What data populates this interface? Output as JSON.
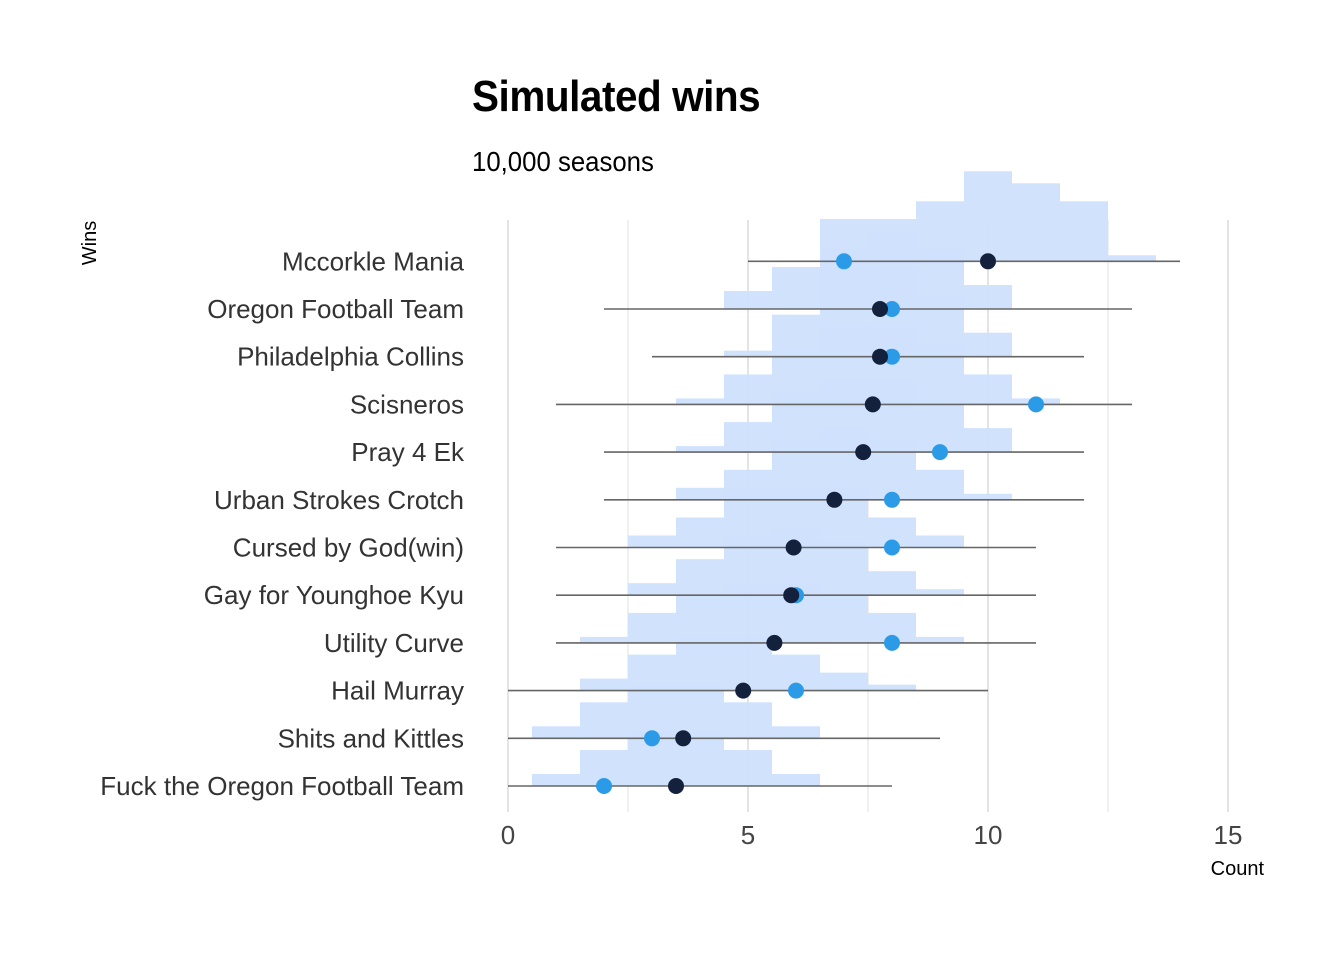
{
  "chart_data": {
    "type": "dotplot-with-histograms",
    "title": "Simulated wins",
    "subtitle": "10,000 seasons",
    "xlabel": "Count",
    "ylabel": "Wins",
    "xlim": [
      0,
      15
    ],
    "xticks": [
      0,
      5,
      10,
      15
    ],
    "colors": {
      "simulated": "#14213d",
      "actual": "#2b9be8",
      "histogram": "#cfe0fd",
      "range": "#666666",
      "grid": "#d9d9d9"
    },
    "teams": [
      {
        "name": "Fuck the Oregon Football Team",
        "mean": 3.5,
        "actual": 2,
        "min": 0,
        "max": 8,
        "hist": [
          [
            0.5,
            1.5,
            0.06
          ],
          [
            1.5,
            2.5,
            0.18
          ],
          [
            2.5,
            4.5,
            0.27
          ],
          [
            4.5,
            5.5,
            0.18
          ],
          [
            5.5,
            6.5,
            0.06
          ]
        ]
      },
      {
        "name": "Shits and Kittles",
        "mean": 3.65,
        "actual": 3,
        "min": 0,
        "max": 9,
        "hist": [
          [
            0.5,
            1.5,
            0.06
          ],
          [
            1.5,
            2.5,
            0.18
          ],
          [
            2.5,
            4.5,
            0.27
          ],
          [
            4.5,
            5.5,
            0.18
          ],
          [
            5.5,
            6.5,
            0.06
          ]
        ]
      },
      {
        "name": "Hail Murray",
        "mean": 4.9,
        "actual": 6,
        "min": 0,
        "max": 10,
        "hist": [
          [
            1.5,
            2.5,
            0.06
          ],
          [
            2.5,
            3.5,
            0.18
          ],
          [
            3.5,
            5.5,
            0.27
          ],
          [
            5.5,
            6.5,
            0.18
          ],
          [
            6.5,
            7.5,
            0.09
          ],
          [
            7.5,
            8.5,
            0.03
          ]
        ]
      },
      {
        "name": "Utility Curve",
        "mean": 5.55,
        "actual": 8,
        "min": 1,
        "max": 11,
        "hist": [
          [
            1.5,
            2.5,
            0.03
          ],
          [
            2.5,
            3.5,
            0.15
          ],
          [
            3.5,
            4.5,
            0.24
          ],
          [
            4.5,
            6.5,
            0.3
          ],
          [
            6.5,
            7.5,
            0.24
          ],
          [
            7.5,
            8.5,
            0.15
          ],
          [
            8.5,
            9.5,
            0.03
          ]
        ]
      },
      {
        "name": "Gay for Younghoe Kyu",
        "mean": 5.9,
        "actual": 6,
        "min": 1,
        "max": 11,
        "hist": [
          [
            2.5,
            3.5,
            0.06
          ],
          [
            3.5,
            4.5,
            0.18
          ],
          [
            4.5,
            5.5,
            0.3
          ],
          [
            5.5,
            6.5,
            0.33
          ],
          [
            6.5,
            7.5,
            0.27
          ],
          [
            7.5,
            8.5,
            0.12
          ],
          [
            8.5,
            9.5,
            0.03
          ]
        ]
      },
      {
        "name": "Cursed by God(win)",
        "mean": 5.95,
        "actual": 8,
        "min": 1,
        "max": 11,
        "hist": [
          [
            2.5,
            3.5,
            0.06
          ],
          [
            3.5,
            4.5,
            0.15
          ],
          [
            4.5,
            5.5,
            0.3
          ],
          [
            5.5,
            7.5,
            0.3
          ],
          [
            7.5,
            8.5,
            0.15
          ],
          [
            8.5,
            9.5,
            0.06
          ]
        ]
      },
      {
        "name": "Urban Strokes Crotch",
        "mean": 6.8,
        "actual": 8,
        "min": 2,
        "max": 12,
        "hist": [
          [
            3.5,
            4.5,
            0.06
          ],
          [
            4.5,
            5.5,
            0.15
          ],
          [
            5.5,
            6.5,
            0.3
          ],
          [
            6.5,
            7.5,
            0.36
          ],
          [
            7.5,
            8.5,
            0.3
          ],
          [
            8.5,
            9.5,
            0.15
          ],
          [
            9.5,
            10.5,
            0.03
          ]
        ]
      },
      {
        "name": "Pray 4 Ek",
        "mean": 7.4,
        "actual": 9,
        "min": 2,
        "max": 12,
        "hist": [
          [
            3.5,
            4.5,
            0.03
          ],
          [
            4.5,
            5.5,
            0.15
          ],
          [
            5.5,
            6.5,
            0.3
          ],
          [
            6.5,
            8.5,
            0.36
          ],
          [
            8.5,
            9.5,
            0.24
          ],
          [
            9.5,
            10.5,
            0.12
          ]
        ]
      },
      {
        "name": "Scisneros",
        "mean": 7.6,
        "actual": 11,
        "min": 1,
        "max": 13,
        "hist": [
          [
            3.5,
            4.5,
            0.03
          ],
          [
            4.5,
            5.5,
            0.15
          ],
          [
            5.5,
            6.5,
            0.27
          ],
          [
            6.5,
            8.5,
            0.39
          ],
          [
            8.5,
            9.5,
            0.3
          ],
          [
            9.5,
            10.5,
            0.15
          ],
          [
            10.5,
            11.5,
            0.03
          ]
        ]
      },
      {
        "name": "Philadelphia Collins",
        "mean": 7.75,
        "actual": 8,
        "min": 3,
        "max": 12,
        "hist": [
          [
            4.5,
            5.5,
            0.03
          ],
          [
            5.5,
            6.5,
            0.21
          ],
          [
            6.5,
            8.5,
            0.45
          ],
          [
            8.5,
            9.5,
            0.3
          ],
          [
            9.5,
            10.5,
            0.12
          ]
        ]
      },
      {
        "name": "Oregon Football Team",
        "mean": 7.75,
        "actual": 8,
        "min": 2,
        "max": 13,
        "hist": [
          [
            4.5,
            5.5,
            0.09
          ],
          [
            5.5,
            6.5,
            0.21
          ],
          [
            6.5,
            8.5,
            0.45
          ],
          [
            8.5,
            9.5,
            0.3
          ],
          [
            9.5,
            10.5,
            0.12
          ]
        ]
      },
      {
        "name": "Mccorkle Mania",
        "mean": 10.0,
        "actual": 7,
        "min": 5,
        "max": 14,
        "hist": [
          [
            6.5,
            7.5,
            0.06
          ],
          [
            7.5,
            8.5,
            0.15
          ],
          [
            8.5,
            9.5,
            0.3
          ],
          [
            9.5,
            10.5,
            0.45
          ],
          [
            10.5,
            11.5,
            0.39
          ],
          [
            11.5,
            12.5,
            0.3
          ],
          [
            12.5,
            13.5,
            0.03
          ]
        ]
      }
    ]
  }
}
